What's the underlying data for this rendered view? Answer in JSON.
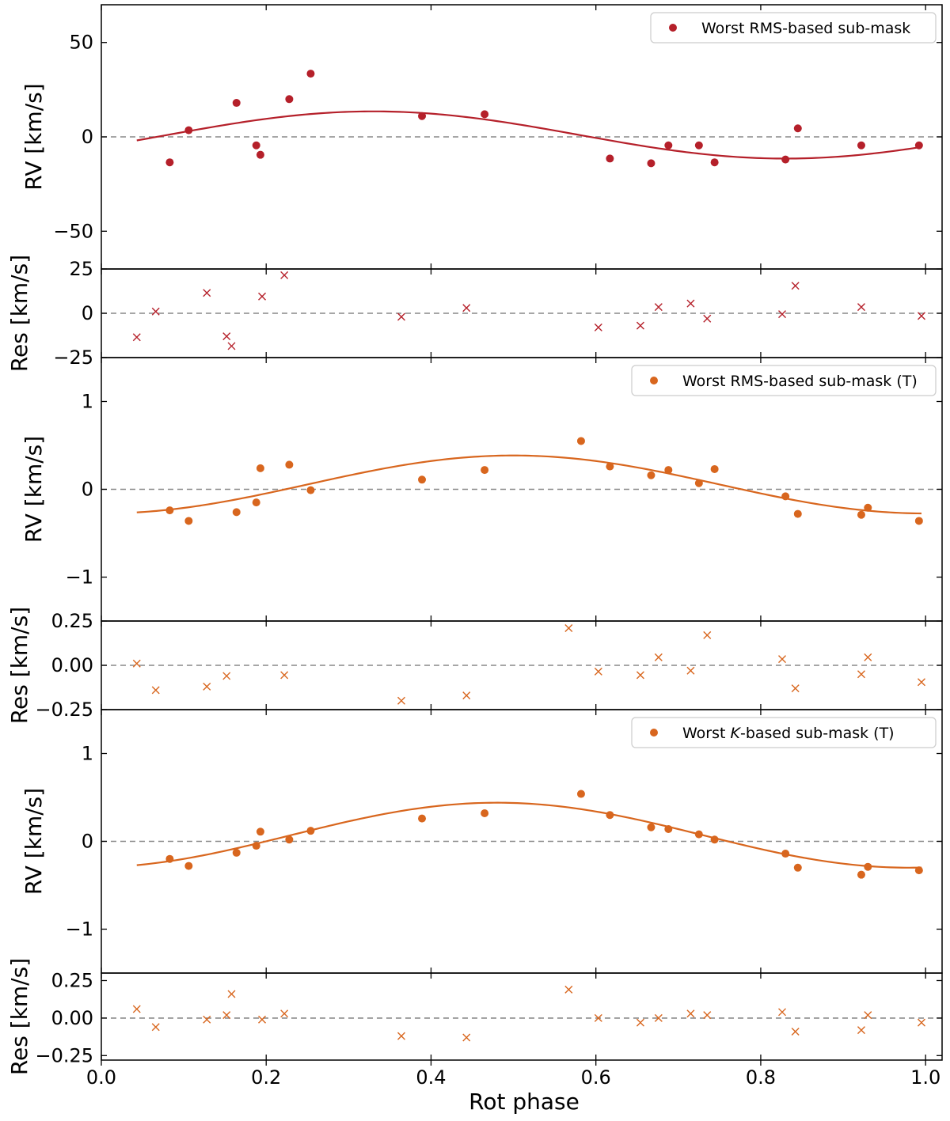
{
  "figure": {
    "xlabel": "Rot phase",
    "xlim": [
      0.0,
      1.02
    ],
    "xticks": [
      0.0,
      0.2,
      0.4,
      0.6,
      0.8,
      1.0
    ],
    "xtick_labels": [
      "0.0",
      "0.2",
      "0.4",
      "0.6",
      "0.8",
      "1.0"
    ]
  },
  "colors": {
    "series1": "#b5202a",
    "series2": "#d8661e",
    "zero_line": "#888888"
  },
  "chart_data": [
    {
      "type": "scatter",
      "panel": "rv",
      "title": "",
      "legend": "Worst RMS-based sub-mask",
      "legend_position": "top-right",
      "ylabel": "RV [km/s]",
      "ylim": [
        -70,
        70
      ],
      "yticks": [
        -50,
        0,
        50
      ],
      "ytick_labels": [
        "−50",
        "0",
        "50"
      ],
      "x": [
        0.083,
        0.106,
        0.164,
        0.188,
        0.193,
        0.228,
        0.254,
        0.389,
        0.465,
        0.617,
        0.667,
        0.688,
        0.725,
        0.744,
        0.83,
        0.845,
        0.922,
        0.992
      ],
      "y": [
        -13.5,
        3.5,
        18,
        -4.5,
        -9.5,
        20,
        33.5,
        11,
        12,
        -11.5,
        -14,
        -4.5,
        -4.5,
        -13.5,
        -12,
        4.5,
        -4.5,
        -4.5
      ],
      "fit": {
        "type": "sinusoid",
        "offset": 1.0,
        "amplitude": 12.5,
        "peak_phase": 0.33,
        "x_range": [
          0.043,
          0.995
        ]
      }
    },
    {
      "type": "scatter",
      "panel": "residual",
      "ylabel": "Res [km/s]",
      "ylim": [
        -25,
        25
      ],
      "yticks": [
        -25,
        0,
        25
      ],
      "ytick_labels": [
        "−25",
        "0",
        "25"
      ],
      "x": [
        0.043,
        0.066,
        0.128,
        0.152,
        0.158,
        0.195,
        0.222,
        0.364,
        0.443,
        0.603,
        0.654,
        0.676,
        0.715,
        0.735,
        0.826,
        0.842,
        0.922,
        0.995
      ],
      "y": [
        -13.5,
        1,
        11.5,
        -13,
        -18.5,
        9.5,
        21.5,
        -2,
        3,
        -8,
        -7,
        3.5,
        5.5,
        -3,
        -0.5,
        15.5,
        3.5,
        -1.5
      ]
    },
    {
      "type": "scatter",
      "panel": "rv",
      "legend": "Worst RMS-based sub-mask (T)",
      "legend_position": "top-right",
      "ylabel": "RV [km/s]",
      "ylim": [
        -1.5,
        1.5
      ],
      "yticks": [
        -1,
        0,
        1
      ],
      "ytick_labels": [
        "−1",
        "0",
        "1"
      ],
      "x": [
        0.083,
        0.106,
        0.164,
        0.188,
        0.193,
        0.228,
        0.254,
        0.389,
        0.465,
        0.582,
        0.617,
        0.667,
        0.688,
        0.725,
        0.744,
        0.83,
        0.845,
        0.922,
        0.93,
        0.992
      ],
      "y": [
        -0.24,
        -0.36,
        -0.26,
        -0.15,
        0.24,
        0.28,
        -0.01,
        0.11,
        0.22,
        0.55,
        0.26,
        0.16,
        0.22,
        0.07,
        0.23,
        -0.08,
        -0.28,
        -0.29,
        -0.21,
        -0.36
      ],
      "fit": {
        "type": "sinusoid",
        "offset": 0.055,
        "amplitude": 0.33,
        "peak_phase": 0.5,
        "x_range": [
          0.043,
          0.995
        ]
      }
    },
    {
      "type": "scatter",
      "panel": "residual",
      "ylabel": "Res [km/s]",
      "ylim": [
        -0.25,
        0.25
      ],
      "yticks": [
        -0.25,
        0.0,
        0.25
      ],
      "ytick_labels": [
        "−0.25",
        "0.00",
        "0.25"
      ],
      "x": [
        0.043,
        0.066,
        0.128,
        0.152,
        0.222,
        0.364,
        0.443,
        0.567,
        0.603,
        0.654,
        0.676,
        0.715,
        0.735,
        0.826,
        0.842,
        0.922,
        0.93,
        0.995
      ],
      "y": [
        0.01,
        -0.14,
        -0.12,
        -0.06,
        -0.055,
        -0.2,
        -0.17,
        0.21,
        -0.035,
        -0.055,
        0.045,
        -0.03,
        0.17,
        0.035,
        -0.13,
        -0.05,
        0.045,
        -0.095
      ]
    },
    {
      "type": "scatter",
      "panel": "rv",
      "legend_prefix": "Worst ",
      "legend_italic": "K",
      "legend_suffix": "-based sub-mask (T)",
      "legend_position": "top-right",
      "ylabel": "RV [km/s]",
      "ylim": [
        -1.5,
        1.5
      ],
      "yticks": [
        -1,
        0,
        1
      ],
      "ytick_labels": [
        "−1",
        "0",
        "1"
      ],
      "x": [
        0.083,
        0.106,
        0.164,
        0.188,
        0.193,
        0.228,
        0.254,
        0.389,
        0.465,
        0.582,
        0.617,
        0.667,
        0.688,
        0.725,
        0.744,
        0.83,
        0.845,
        0.922,
        0.93,
        0.992
      ],
      "y": [
        -0.2,
        -0.28,
        -0.13,
        -0.05,
        0.11,
        0.02,
        0.12,
        0.26,
        0.32,
        0.54,
        0.3,
        0.16,
        0.14,
        0.08,
        0.02,
        -0.14,
        -0.3,
        -0.38,
        -0.29,
        -0.33
      ],
      "fit": {
        "type": "sinusoid",
        "offset": 0.07,
        "amplitude": 0.37,
        "peak_phase": 0.48,
        "x_range": [
          0.043,
          0.995
        ]
      }
    },
    {
      "type": "scatter",
      "panel": "residual",
      "ylabel": "Res [km/s]",
      "ylim": [
        -0.28,
        0.3
      ],
      "yticks": [
        -0.25,
        0.0,
        0.25
      ],
      "ytick_labels": [
        "−0.25",
        "0.00",
        "0.25"
      ],
      "x": [
        0.043,
        0.066,
        0.128,
        0.152,
        0.158,
        0.195,
        0.222,
        0.364,
        0.443,
        0.567,
        0.603,
        0.654,
        0.676,
        0.715,
        0.735,
        0.826,
        0.842,
        0.922,
        0.93,
        0.995
      ],
      "y": [
        0.06,
        -0.06,
        -0.01,
        0.02,
        0.16,
        -0.01,
        0.03,
        -0.12,
        -0.13,
        0.19,
        0.0,
        -0.03,
        0.0,
        0.03,
        0.02,
        0.04,
        -0.09,
        -0.08,
        0.02,
        -0.03
      ]
    }
  ]
}
